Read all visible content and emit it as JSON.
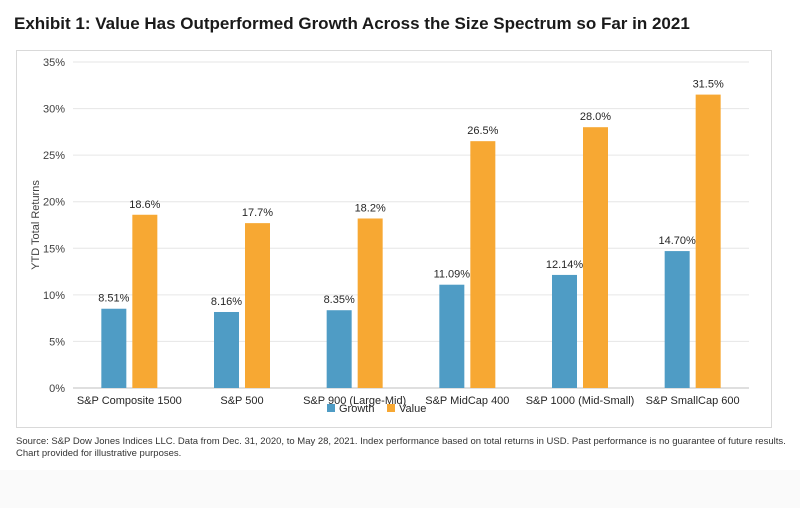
{
  "title": "Exhibit 1: Value Has Outperformed Growth Across the Size Spectrum so Far in 2021",
  "source": "Source: S&P Dow Jones Indices LLC. Data from Dec. 31, 2020, to May 28, 2021. Index performance based on total returns in USD. Past performance is no guarantee of future results. Chart provided for illustrative purposes.",
  "colors": {
    "growth": "#4f9cc5",
    "value": "#f7a833",
    "grid": "#e6e6e6",
    "axis": "#bfbfbf"
  },
  "chart_data": {
    "type": "bar",
    "categories": [
      "S&P Composite 1500",
      "S&P 500",
      "S&P 900 (Large-Mid)",
      "S&P MidCap 400",
      "S&P 1000 (Mid-Small)",
      "S&P SmallCap 600"
    ],
    "series": [
      {
        "name": "Growth",
        "values": [
          8.51,
          8.16,
          8.35,
          11.09,
          12.14,
          14.7
        ],
        "labels": [
          "8.51%",
          "8.16%",
          "8.35%",
          "11.09%",
          "12.14%",
          "14.70%"
        ]
      },
      {
        "name": "Value",
        "values": [
          18.6,
          17.7,
          18.2,
          26.5,
          28.0,
          31.5
        ],
        "labels": [
          "18.6%",
          "17.7%",
          "18.2%",
          "26.5%",
          "28.0%",
          "31.5%"
        ]
      }
    ],
    "ylabel": "YTD Total Returns",
    "xlabel": "",
    "ylim": [
      0,
      35
    ],
    "yticks": [
      0,
      5,
      10,
      15,
      20,
      25,
      30,
      35
    ],
    "ytick_labels": [
      "0%",
      "5%",
      "10%",
      "15%",
      "20%",
      "25%",
      "30%",
      "35%"
    ],
    "legend": "bottom-center",
    "grid": true
  }
}
